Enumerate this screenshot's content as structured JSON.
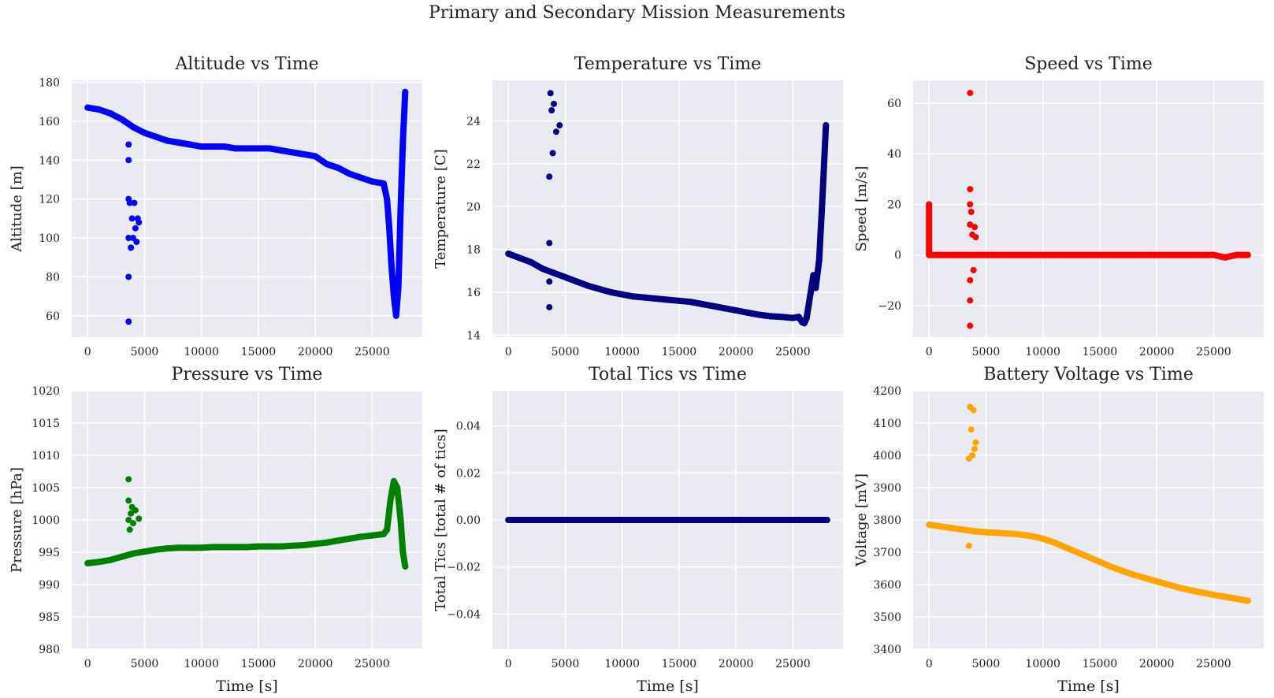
{
  "figure": {
    "title": "Primary and Secondary Mission Measurements"
  },
  "chart_data": [
    {
      "type": "scatter",
      "title": "Altitude vs Time",
      "xlabel": "",
      "ylabel": "Altitude [m]",
      "xlim": [
        -1400,
        29400
      ],
      "ylim": [
        49,
        181
      ],
      "xticks": [
        0,
        5000,
        10000,
        15000,
        20000,
        25000
      ],
      "yticks": [
        60,
        80,
        100,
        120,
        140,
        160,
        180
      ],
      "color": "#0000ff",
      "grid": true,
      "series": [
        {
          "x": [
            0,
            1000,
            2000,
            3000,
            4000,
            5000,
            6000,
            7000,
            8000,
            9000,
            10000,
            11000,
            12000,
            13000,
            14000,
            15000,
            16000,
            17000,
            18000,
            19000,
            20000,
            21000,
            22000,
            23000,
            24000,
            25000,
            26000,
            26300,
            26500,
            26700,
            26900,
            27100,
            27300,
            27500,
            27700,
            27900,
            3600,
            3600,
            3600,
            3600,
            3600,
            3600,
            3700,
            3800,
            3900,
            4000,
            4100,
            4200,
            4300,
            4400,
            4500
          ],
          "y": [
            167,
            166,
            164,
            161,
            157,
            154,
            152,
            150,
            149,
            148,
            147,
            147,
            147,
            146,
            146,
            146,
            146,
            145,
            144,
            143,
            142,
            138,
            136,
            133,
            131,
            129,
            128,
            120,
            105,
            85,
            70,
            60,
            75,
            115,
            150,
            175,
            57,
            80,
            100,
            120,
            140,
            148,
            118,
            95,
            110,
            100,
            118,
            105,
            98,
            110,
            108
          ]
        }
      ]
    },
    {
      "type": "scatter",
      "title": "Temperature vs Time",
      "xlabel": "",
      "ylabel": "Temperature [C]",
      "xlim": [
        -1400,
        29400
      ],
      "ylim": [
        13.9,
        25.9
      ],
      "xticks": [
        0,
        5000,
        10000,
        15000,
        20000,
        25000
      ],
      "yticks": [
        14,
        16,
        18,
        20,
        22,
        24
      ],
      "color": "#000080",
      "grid": true,
      "series": [
        {
          "x": [
            0,
            1000,
            2000,
            3000,
            4000,
            5000,
            6000,
            7000,
            8000,
            9000,
            10000,
            11000,
            12000,
            13000,
            14000,
            15000,
            16000,
            17000,
            18000,
            19000,
            20000,
            21000,
            22000,
            23000,
            24000,
            25000,
            25500,
            25800,
            26000,
            26200,
            26500,
            26800,
            27000,
            27300,
            27600,
            27900,
            3600,
            3600,
            3600,
            3600,
            3700,
            3800,
            3900,
            4000,
            4200,
            4500
          ],
          "y": [
            17.8,
            17.6,
            17.4,
            17.1,
            16.9,
            16.7,
            16.5,
            16.3,
            16.15,
            16.0,
            15.9,
            15.8,
            15.75,
            15.7,
            15.65,
            15.6,
            15.55,
            15.45,
            15.35,
            15.25,
            15.15,
            15.05,
            14.95,
            14.88,
            14.85,
            14.8,
            14.85,
            14.6,
            14.55,
            14.8,
            15.8,
            16.8,
            16.2,
            17.5,
            20.5,
            23.8,
            15.3,
            16.5,
            18.3,
            21.4,
            25.3,
            24.5,
            22.5,
            24.8,
            23.5,
            23.8
          ]
        }
      ]
    },
    {
      "type": "scatter",
      "title": "Speed vs Time",
      "xlabel": "",
      "ylabel": "Speed [m/s]",
      "xlim": [
        -1400,
        29400
      ],
      "ylim": [
        -32.5,
        69
      ],
      "xticks": [
        0,
        5000,
        10000,
        15000,
        20000,
        25000
      ],
      "yticks": [
        -20,
        0,
        20,
        40,
        60
      ],
      "ytick_labels": [
        "−20",
        "0",
        "20",
        "40",
        "60"
      ],
      "color": "#ff0000",
      "grid": true,
      "series": [
        {
          "x": [
            0,
            0,
            1000,
            2000,
            3000,
            4000,
            5000,
            6000,
            7000,
            8000,
            9000,
            10000,
            11000,
            12000,
            13000,
            14000,
            15000,
            16000,
            17000,
            18000,
            19000,
            20000,
            21000,
            22000,
            23000,
            24000,
            25000,
            26000,
            27000,
            28000,
            3600,
            3600,
            3600,
            3600,
            3600,
            3600,
            3600,
            3700,
            3800,
            3900,
            4000,
            4100
          ],
          "y": [
            20,
            0,
            0,
            0,
            0,
            0,
            0,
            0,
            0,
            0,
            0,
            0,
            0,
            0,
            0,
            0,
            0,
            0,
            0,
            0,
            0,
            0,
            0,
            0,
            0,
            0,
            0,
            -1,
            0,
            0,
            64,
            26,
            20,
            12,
            -10,
            -18,
            -28,
            17,
            8,
            -6,
            11,
            7
          ]
        }
      ]
    },
    {
      "type": "scatter",
      "title": "Pressure vs Time",
      "xlabel": "Time [s]",
      "ylabel": "Pressure [hPa]",
      "xlim": [
        -1400,
        29400
      ],
      "ylim": [
        980,
        1020
      ],
      "xticks": [
        0,
        5000,
        10000,
        15000,
        20000,
        25000
      ],
      "yticks": [
        980,
        985,
        990,
        995,
        1000,
        1005,
        1010,
        1015,
        1020
      ],
      "color": "#008000",
      "grid": true,
      "series": [
        {
          "x": [
            0,
            1000,
            2000,
            3000,
            4000,
            5000,
            6000,
            7000,
            8000,
            9000,
            10000,
            11000,
            12000,
            13000,
            14000,
            15000,
            16000,
            17000,
            18000,
            19000,
            20000,
            21000,
            22000,
            23000,
            24000,
            25000,
            26000,
            26300,
            26600,
            26900,
            27200,
            27500,
            27700,
            27900,
            3600,
            3600,
            3600,
            3700,
            3800,
            3900,
            4000,
            4200,
            4500
          ],
          "y": [
            993.3,
            993.5,
            993.8,
            994.3,
            994.8,
            995.1,
            995.4,
            995.6,
            995.7,
            995.7,
            995.7,
            995.8,
            995.8,
            995.8,
            995.8,
            995.9,
            995.9,
            995.9,
            996.0,
            996.1,
            996.3,
            996.5,
            996.8,
            997.1,
            997.4,
            997.6,
            997.8,
            998.5,
            1003,
            1006,
            1005,
            1000,
            995,
            992.8,
            1006.3,
            1003,
            1000,
            998.5,
            1001,
            1002,
            999.5,
            1001.5,
            1000.2
          ]
        }
      ]
    },
    {
      "type": "scatter",
      "title": "Total Tics vs Time",
      "xlabel": "Time [s]",
      "ylabel": "Total Tics [total # of tics]",
      "xlim": [
        -1400,
        29400
      ],
      "ylim": [
        -0.055,
        0.055
      ],
      "xticks": [
        0,
        5000,
        10000,
        15000,
        20000,
        25000
      ],
      "yticks": [
        -0.04,
        -0.02,
        0.0,
        0.02,
        0.04
      ],
      "ytick_labels": [
        "−0.04",
        "−0.02",
        "0.00",
        "0.02",
        "0.04"
      ],
      "color": "#000080",
      "grid": true,
      "series": [
        {
          "x": [
            0,
            2000,
            4000,
            6000,
            8000,
            10000,
            12000,
            14000,
            16000,
            18000,
            20000,
            22000,
            24000,
            26000,
            28000
          ],
          "y": [
            0,
            0,
            0,
            0,
            0,
            0,
            0,
            0,
            0,
            0,
            0,
            0,
            0,
            0,
            0
          ]
        }
      ]
    },
    {
      "type": "scatter",
      "title": "Battery Voltage vs Time",
      "xlabel": "Time [s]",
      "ylabel": "Voltage [mV]",
      "xlim": [
        -1400,
        29400
      ],
      "ylim": [
        3400,
        4200
      ],
      "xticks": [
        0,
        5000,
        10000,
        15000,
        20000,
        25000
      ],
      "yticks": [
        3400,
        3500,
        3600,
        3700,
        3800,
        3900,
        4000,
        4100,
        4200
      ],
      "color": "#ffa500",
      "grid": true,
      "series": [
        {
          "x": [
            0,
            1000,
            2000,
            3000,
            4000,
            5000,
            6000,
            7000,
            8000,
            9000,
            10000,
            11000,
            12000,
            13000,
            14000,
            15000,
            16000,
            17000,
            18000,
            19000,
            20000,
            21000,
            22000,
            23000,
            24000,
            25000,
            26000,
            27000,
            28000,
            3500,
            3500,
            3600,
            3700,
            3800,
            3900,
            4000,
            4100
          ],
          "y": [
            3785,
            3780,
            3775,
            3770,
            3765,
            3762,
            3760,
            3758,
            3755,
            3750,
            3742,
            3730,
            3715,
            3700,
            3685,
            3670,
            3655,
            3642,
            3630,
            3620,
            3610,
            3600,
            3590,
            3582,
            3575,
            3568,
            3562,
            3556,
            3550,
            3720,
            3990,
            4150,
            4080,
            4000,
            4140,
            4020,
            4040
          ]
        }
      ]
    }
  ]
}
